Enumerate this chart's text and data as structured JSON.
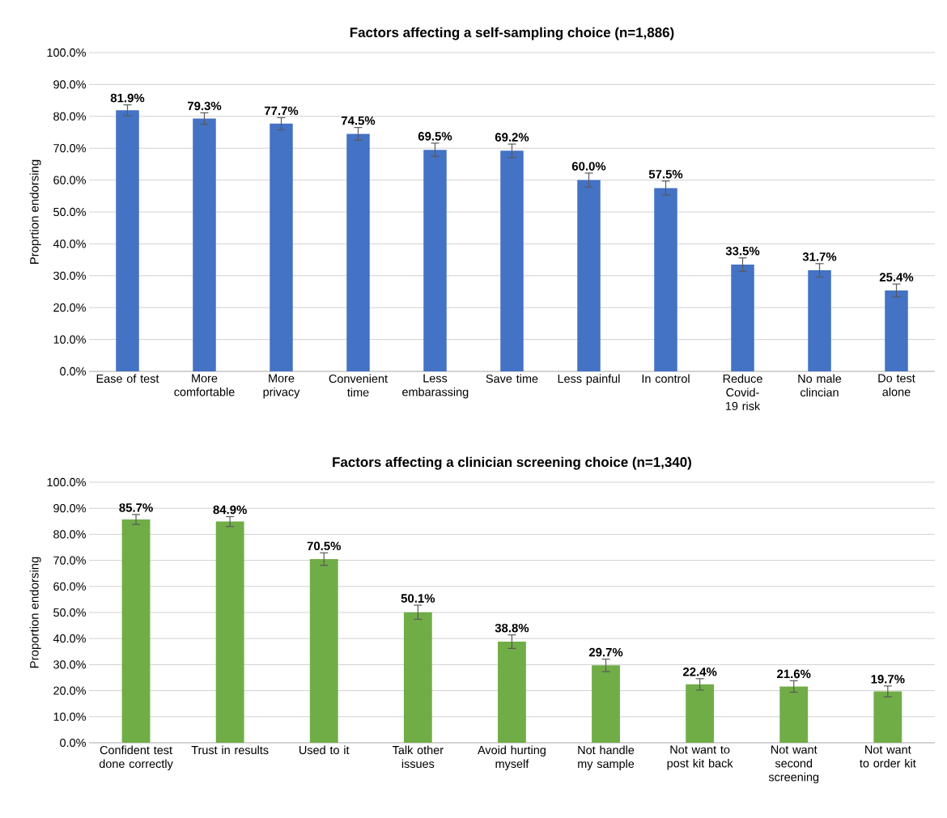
{
  "chart_data": [
    {
      "type": "bar",
      "title": "Factors affecting a self-sampling choice (n=1,886)",
      "ylabel": "Proprtion endorsing",
      "categories": [
        "Ease of test",
        "More comfortable",
        "More privacy",
        "Convenient time",
        "Less embarassing",
        "Save time",
        "Less painful",
        "In control",
        "Reduce Covid-19 risk",
        "No male clincian",
        "Do test alone"
      ],
      "values": [
        81.9,
        79.3,
        77.7,
        74.5,
        69.5,
        69.2,
        60.0,
        57.5,
        33.5,
        31.7,
        25.4
      ],
      "errors": [
        1.7,
        1.8,
        1.9,
        2.0,
        2.1,
        2.1,
        2.2,
        2.2,
        2.1,
        2.1,
        2.0
      ],
      "value_labels": [
        "81.9%",
        "79.3%",
        "77.7%",
        "74.5%",
        "69.5%",
        "69.2%",
        "60.0%",
        "57.5%",
        "33.5%",
        "31.7%",
        "25.4%"
      ],
      "color": "#4472c4",
      "ylim": [
        0,
        100
      ],
      "yticks": [
        {
          "value": 0,
          "label": "0.0%"
        },
        {
          "value": 10,
          "label": "10.0%"
        },
        {
          "value": 20,
          "label": "20.0%"
        },
        {
          "value": 30,
          "label": "30.0%"
        },
        {
          "value": 40,
          "label": "40.0%"
        },
        {
          "value": 50,
          "label": "50.0%"
        },
        {
          "value": 60,
          "label": "60.0%"
        },
        {
          "value": 70,
          "label": "70.0%"
        },
        {
          "value": 80,
          "label": "80.0%"
        },
        {
          "value": 90,
          "label": "90.0%"
        },
        {
          "value": 100,
          "label": "100.0%"
        }
      ],
      "grid": "y"
    },
    {
      "type": "bar",
      "title": "Factors affecting a clinician screening choice (n=1,340)",
      "ylabel": "Proportion endorsing",
      "categories": [
        "Confident test done correctly",
        "Trust in results",
        "Used to it",
        "Talk other issues",
        "Avoid hurting myself",
        "Not handle my sample",
        "Not want to post kit back",
        "Not want second screening",
        "Not want to order kit"
      ],
      "values": [
        85.7,
        84.9,
        70.5,
        50.1,
        38.8,
        29.7,
        22.4,
        21.6,
        19.7
      ],
      "errors": [
        1.9,
        1.9,
        2.4,
        2.7,
        2.6,
        2.4,
        2.2,
        2.2,
        2.1
      ],
      "value_labels": [
        "85.7%",
        "84.9%",
        "70.5%",
        "50.1%",
        "38.8%",
        "29.7%",
        "22.4%",
        "21.6%",
        "19.7%"
      ],
      "color": "#70ad47",
      "ylim": [
        0,
        100
      ],
      "yticks": [
        {
          "value": 0,
          "label": "0.0%"
        },
        {
          "value": 10,
          "label": "10.0%"
        },
        {
          "value": 20,
          "label": "20.0%"
        },
        {
          "value": 30,
          "label": "30.0%"
        },
        {
          "value": 40,
          "label": "40.0%"
        },
        {
          "value": 50,
          "label": "50.0%"
        },
        {
          "value": 60,
          "label": "60.0%"
        },
        {
          "value": 70,
          "label": "70.0%"
        },
        {
          "value": 80,
          "label": "80.0%"
        },
        {
          "value": 90,
          "label": "90.0%"
        },
        {
          "value": 100,
          "label": "100.0%"
        }
      ],
      "grid": "y"
    }
  ]
}
